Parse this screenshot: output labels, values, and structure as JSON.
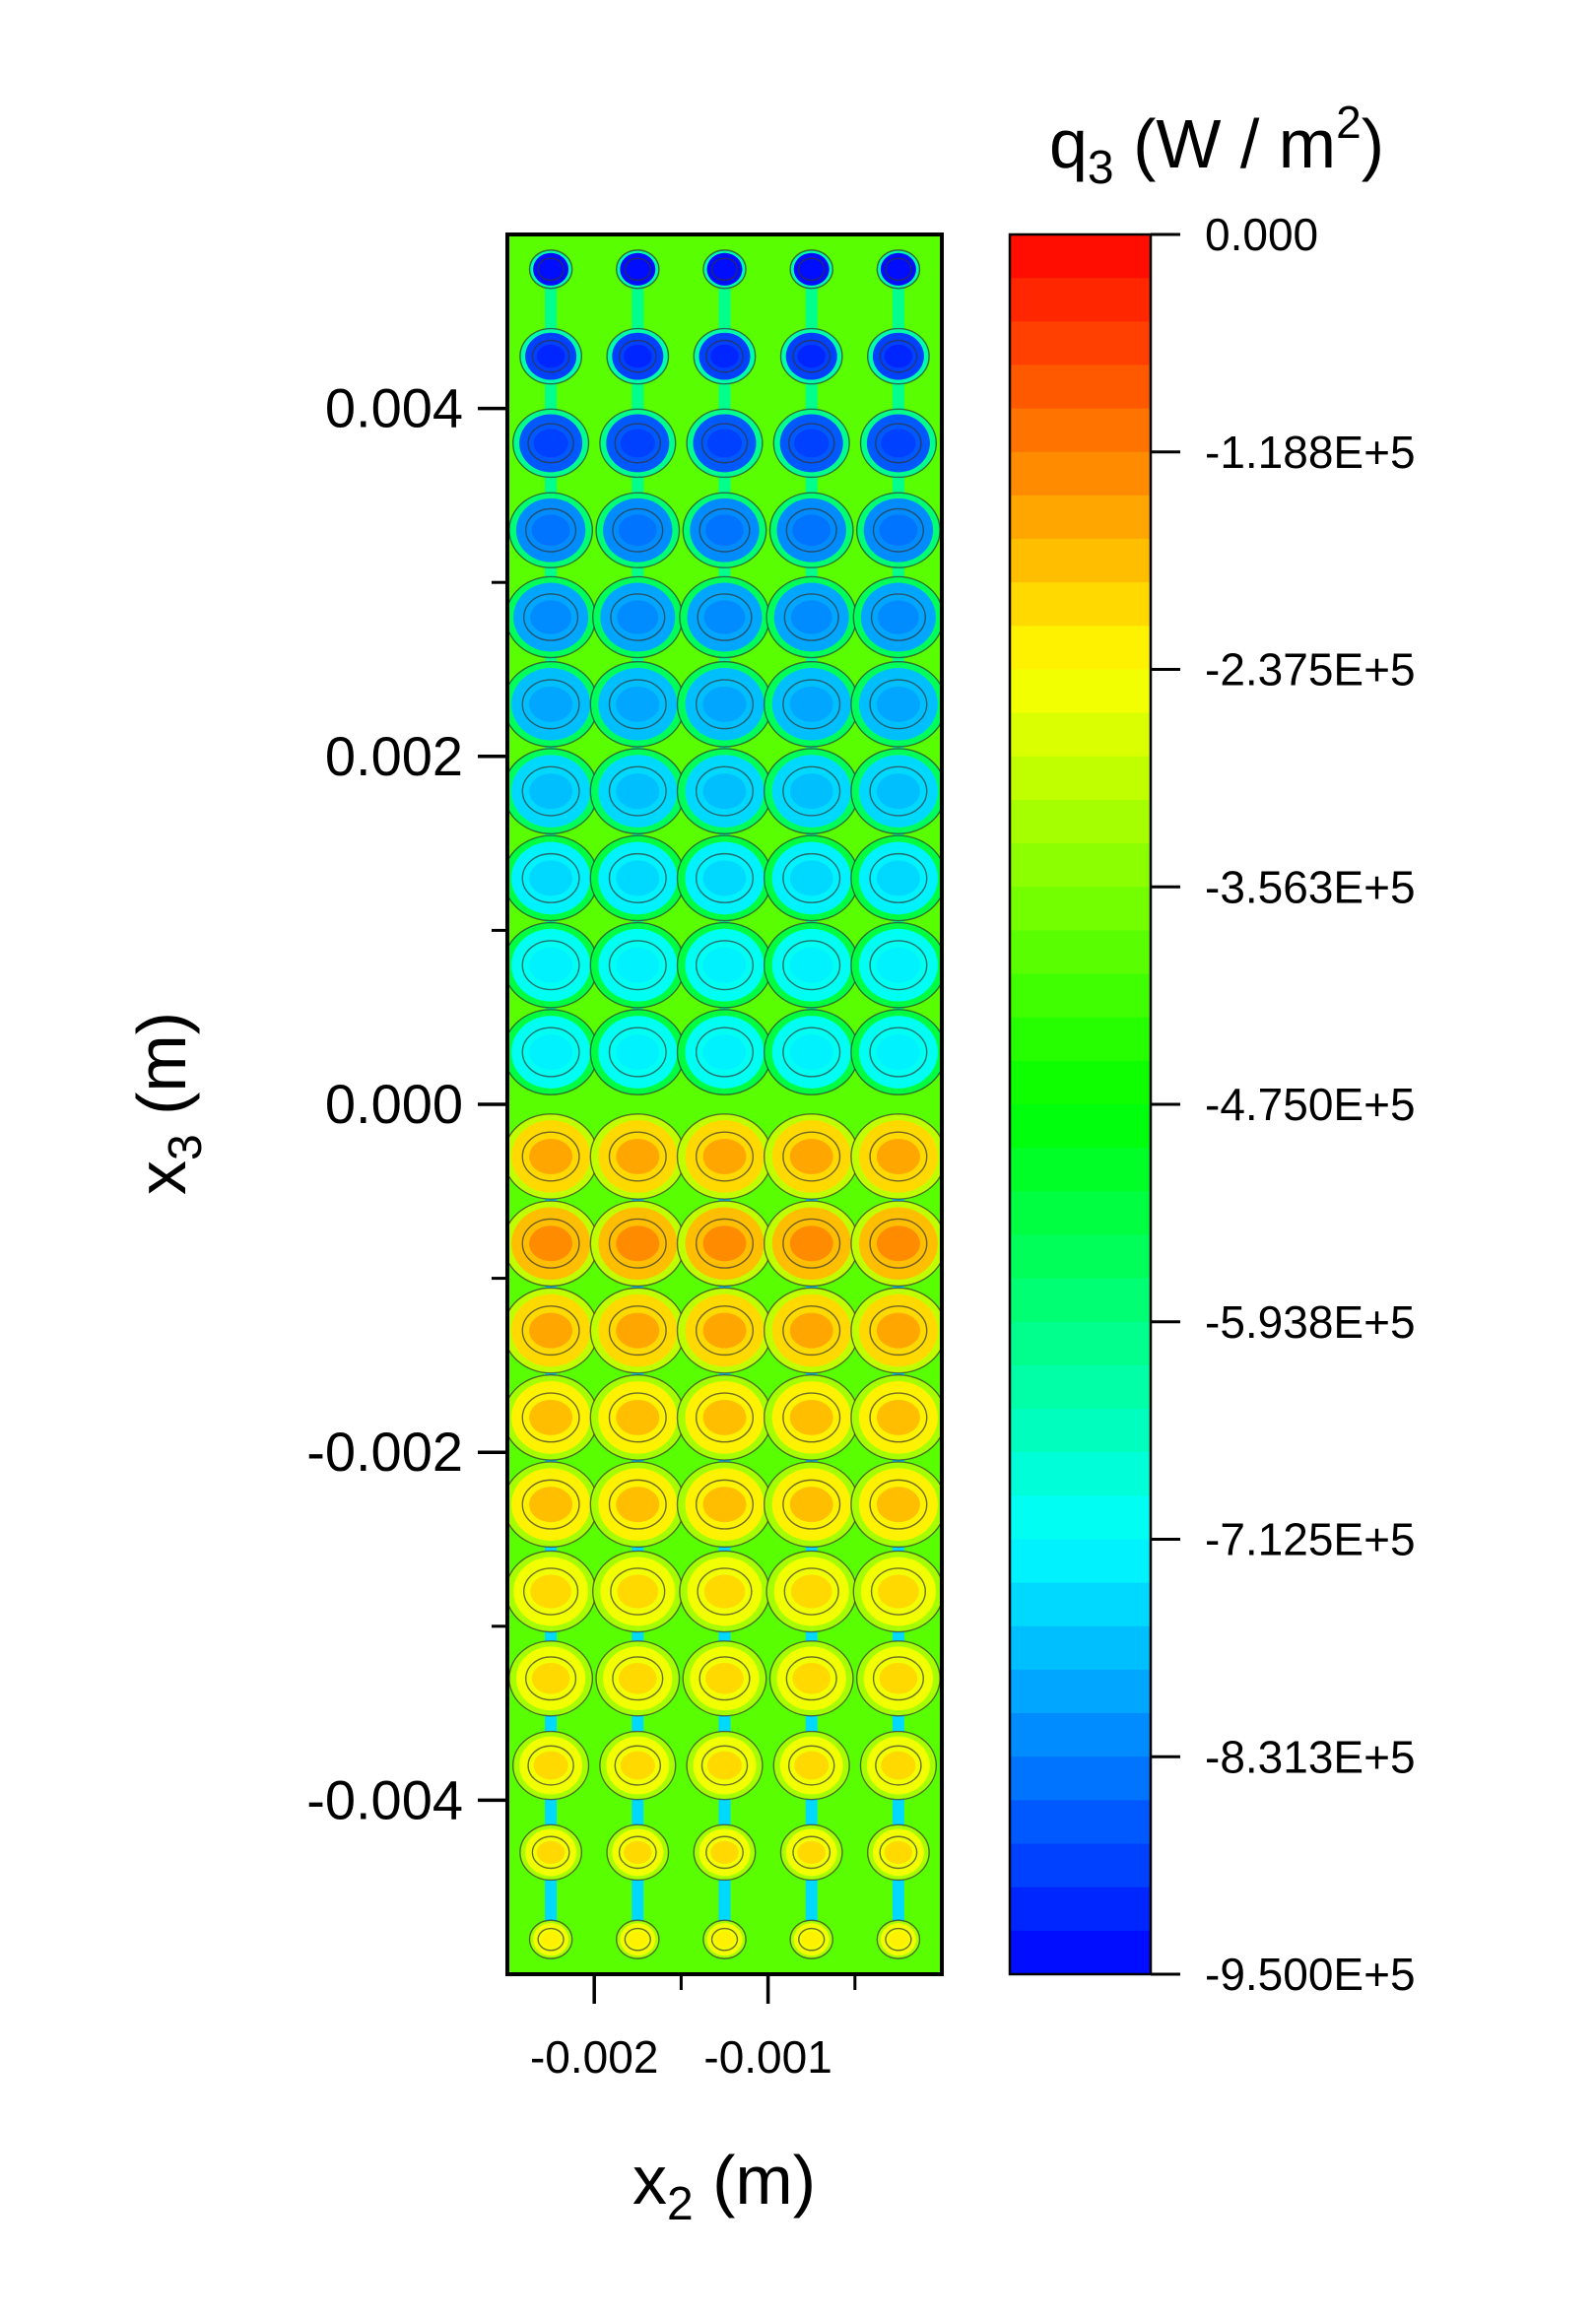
{
  "chart_data": {
    "type": "heatmap",
    "title": "",
    "xlabel": "x",
    "xlabel_sub": "2",
    "xlabel_unit": " (m)",
    "ylabel": "x",
    "ylabel_sub": "3",
    "ylabel_unit": " (m)",
    "colorbar_label": "q",
    "colorbar_label_sub": "3",
    "colorbar_label_unit_pre": " (W / m",
    "colorbar_label_unit_sup": "2",
    "colorbar_label_unit_post": ")",
    "xlim": [
      -0.0025,
      0.0
    ],
    "ylim": [
      -0.005,
      0.005
    ],
    "x_ticks": [
      {
        "value": -0.002,
        "label": "-0.002"
      },
      {
        "value": -0.001,
        "label": "-0.001"
      }
    ],
    "x_minor_ticks": [
      -0.0015,
      -0.0005
    ],
    "y_ticks": [
      {
        "value": 0.004,
        "label": "0.004"
      },
      {
        "value": 0.002,
        "label": "0.002"
      },
      {
        "value": 0.0,
        "label": "0.000"
      },
      {
        "value": -0.002,
        "label": "-0.002"
      },
      {
        "value": -0.004,
        "label": "-0.004"
      }
    ],
    "y_minor_ticks": [
      0.003,
      0.001,
      -0.001,
      -0.003
    ],
    "colorbar_range": [
      -950000,
      0
    ],
    "colorbar_ticks": [
      {
        "value": 0,
        "label": "0.000"
      },
      {
        "value": -118750,
        "label": "-1.188E+5"
      },
      {
        "value": -237500,
        "label": "-2.375E+5"
      },
      {
        "value": -356250,
        "label": "-3.563E+5"
      },
      {
        "value": -475000,
        "label": "-4.750E+5"
      },
      {
        "value": -593750,
        "label": "-5.938E+5"
      },
      {
        "value": -712500,
        "label": "-7.125E+5"
      },
      {
        "value": -831250,
        "label": "-8.313E+5"
      },
      {
        "value": -950000,
        "label": "-9.500E+5"
      }
    ],
    "colormap_stops": [
      "#0000ff",
      "#00ffff",
      "#00ff00",
      "#ffff00",
      "#ff0000"
    ],
    "colorbar_levels": 40,
    "background_value": -390000,
    "columns_x": [
      -0.002,
      -0.0015,
      -0.001,
      -0.0005,
      0.0
    ],
    "rows": [
      {
        "y": 0.0048,
        "value": -930000,
        "size": 0.45
      },
      {
        "y": 0.0043,
        "value": -900000,
        "size": 0.65
      },
      {
        "y": 0.0038,
        "value": -860000,
        "size": 0.8
      },
      {
        "y": 0.0033,
        "value": -820000,
        "size": 0.88
      },
      {
        "y": 0.0028,
        "value": -790000,
        "size": 0.95
      },
      {
        "y": 0.0023,
        "value": -765000,
        "size": 1.0
      },
      {
        "y": 0.0018,
        "value": -745000,
        "size": 1.0
      },
      {
        "y": 0.0013,
        "value": -725000,
        "size": 1.0
      },
      {
        "y": 0.0008,
        "value": -705000,
        "size": 1.0
      },
      {
        "y": 0.0003,
        "value": -690000,
        "size": 1.0
      },
      {
        "y": -0.0003,
        "value": -200000,
        "size": 1.0
      },
      {
        "y": -0.0008,
        "value": -180000,
        "size": 1.0
      },
      {
        "y": -0.0013,
        "value": -195000,
        "size": 1.0
      },
      {
        "y": -0.0018,
        "value": -215000,
        "size": 1.0
      },
      {
        "y": -0.0023,
        "value": -230000,
        "size": 1.0
      },
      {
        "y": -0.0028,
        "value": -240000,
        "size": 0.95
      },
      {
        "y": -0.0033,
        "value": -245000,
        "size": 0.88
      },
      {
        "y": -0.0038,
        "value": -250000,
        "size": 0.8
      },
      {
        "y": -0.0043,
        "value": -255000,
        "size": 0.65
      },
      {
        "y": -0.0048,
        "value": -260000,
        "size": 0.45
      }
    ],
    "neck_values": {
      "upper": -600000,
      "lower": -750000
    }
  }
}
